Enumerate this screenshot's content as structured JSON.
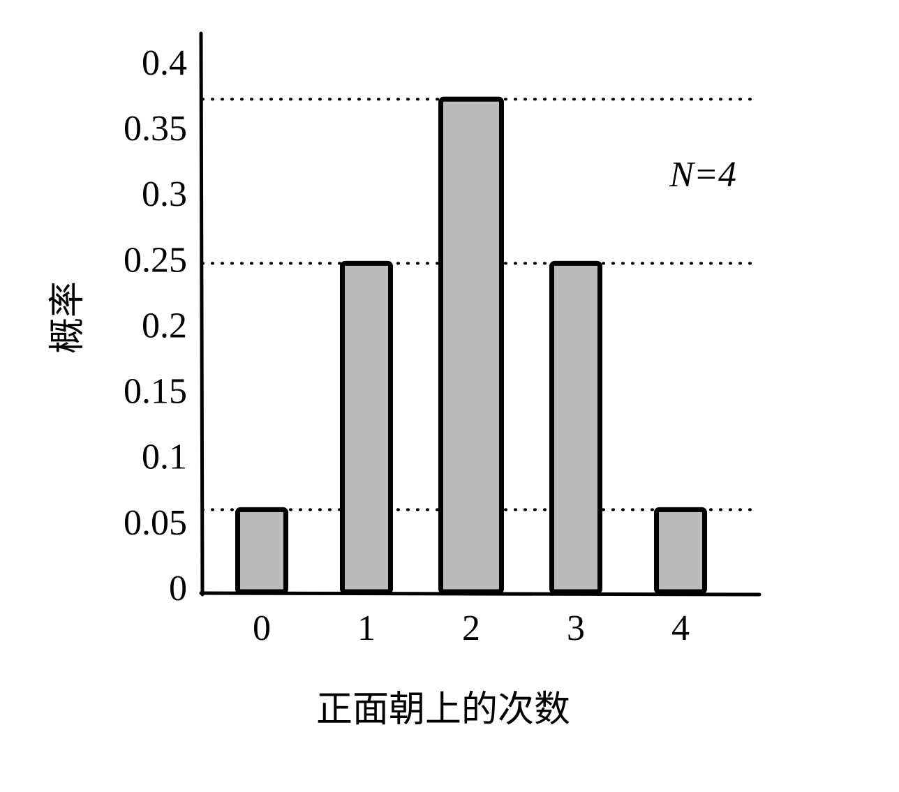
{
  "chart_data": {
    "type": "bar",
    "x_label": "正面朝上的次数",
    "y_label": "概率",
    "annotation": "N=4",
    "categories": [
      "0",
      "1",
      "2",
      "3",
      "4"
    ],
    "values": [
      0.0625,
      0.25,
      0.375,
      0.25,
      0.0625
    ],
    "color": "#bbbbbb",
    "ylim": [
      0,
      0.425
    ],
    "yticks": [
      0,
      0.05,
      0.1,
      0.15,
      0.2,
      0.25,
      0.3,
      0.35,
      0.4
    ],
    "grid": false
  }
}
